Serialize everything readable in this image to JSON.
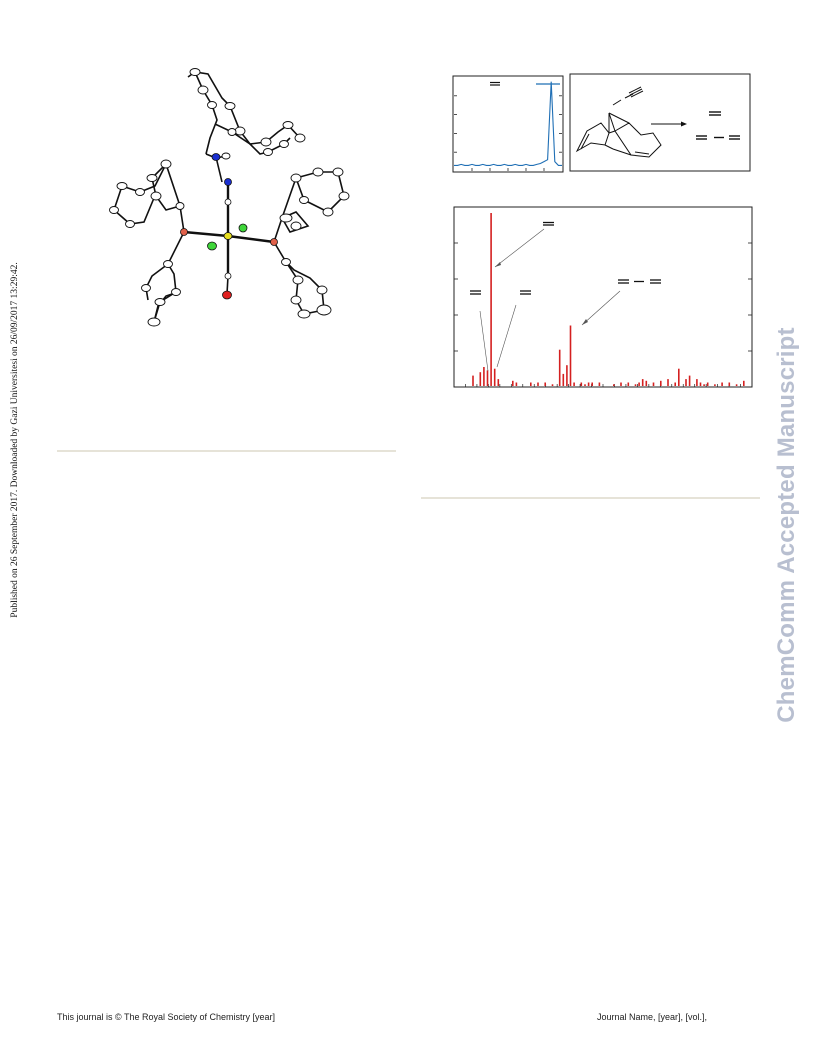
{
  "sidebar_text": "Published on 26 September 2017. Downloaded by Gazi Universitesi on 26/09/2017 13:29:42.",
  "watermark": "ChemComm Accepted Manuscript",
  "footer": {
    "left": "This journal is © The Royal Society of Chemistry [year]",
    "right": "Journal Name,  [year], [vol.],"
  },
  "colors": {
    "watermark": "#b8bfd0",
    "ir_trace": "#1f6fb5",
    "ms_bars": "#d42020",
    "phosphorus": "#e0604a",
    "nitrogen": "#1a2fd0",
    "chlorine": "#3fd63a",
    "metal": "#e8e020",
    "oxygen": "#e02020"
  },
  "chart_data": [
    {
      "type": "line",
      "series": [
        {
          "values": [
            0.06,
            0.06,
            0.07,
            0.06,
            0.06,
            0.07,
            0.06,
            0.06,
            0.07,
            0.06,
            0.06,
            0.07,
            0.06,
            0.06,
            0.07,
            0.06,
            0.06,
            0.07,
            0.06,
            0.06,
            0.07,
            0.06,
            0.06,
            0.07,
            0.08,
            0.1,
            0.12,
            0.95,
            0.1,
            0.06,
            0.06
          ]
        }
      ],
      "x": [
        0,
        1,
        2,
        3,
        4,
        5,
        6,
        7,
        8,
        9,
        10,
        11,
        12,
        13,
        14,
        15,
        16,
        17,
        18,
        19,
        20,
        21,
        22,
        23,
        24,
        25,
        26,
        27,
        28,
        29,
        30
      ],
      "xlim": [
        0,
        30
      ],
      "ylim": [
        0,
        1
      ],
      "grid": false
    },
    {
      "type": "bar",
      "x": [
        5,
        7,
        8,
        9,
        10,
        11,
        12,
        16,
        17,
        21,
        23,
        25,
        27,
        29,
        30,
        31,
        32,
        33,
        35,
        36,
        37,
        38,
        40,
        44,
        46,
        48,
        50,
        51,
        52,
        53,
        55,
        57,
        59,
        61,
        62,
        64,
        65,
        67,
        68,
        69,
        70,
        72,
        74,
        76,
        78,
        80
      ],
      "values": [
        0.06,
        0.08,
        0.11,
        0.09,
        1.0,
        0.1,
        0.04,
        0.03,
        0.02,
        0.02,
        0.02,
        0.02,
        0.01,
        0.21,
        0.07,
        0.12,
        0.35,
        0.02,
        0.02,
        0.01,
        0.02,
        0.02,
        0.02,
        0.01,
        0.02,
        0.02,
        0.01,
        0.02,
        0.04,
        0.03,
        0.02,
        0.03,
        0.04,
        0.02,
        0.1,
        0.04,
        0.06,
        0.04,
        0.02,
        0.01,
        0.02,
        0.01,
        0.02,
        0.02,
        0.01,
        0.03
      ],
      "xlim": [
        0,
        82
      ],
      "ylim": [
        0,
        1.0
      ],
      "grid": false
    }
  ]
}
